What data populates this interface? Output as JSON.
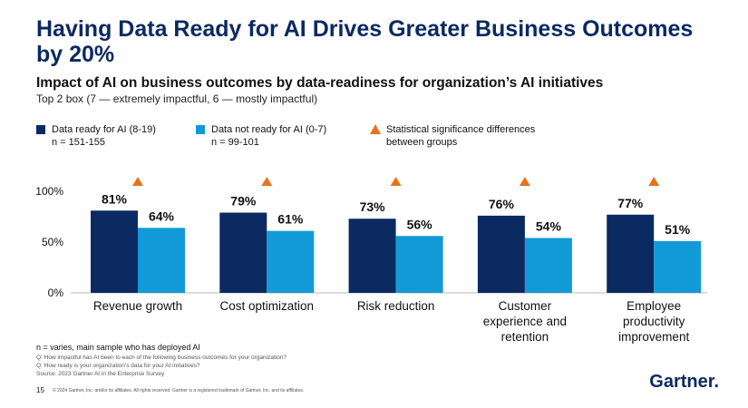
{
  "header": {
    "title": "Having Data Ready for AI Drives Greater Business Outcomes by 20%",
    "subtitle": "Impact of AI on business outcomes by data-readiness for organization’s AI initiatives",
    "note": "Top 2 box (7 — extremely impactful, 6 — mostly impactful)"
  },
  "chart_data": {
    "type": "bar",
    "categories": [
      "Revenue growth",
      "Cost optimization",
      "Risk reduction",
      "Customer experience and retention",
      "Employee productivity improvement"
    ],
    "series": [
      {
        "name": "Data ready for AI (8-19)",
        "sample": "n = 151-155",
        "color": "#0b2a62",
        "values": [
          81,
          79,
          73,
          76,
          77
        ],
        "value_labels": [
          "81%",
          "79%",
          "73%",
          "76%",
          "77%"
        ]
      },
      {
        "name": "Data not ready for AI (0-7)",
        "sample": "n = 99-101",
        "color": "#129ad8",
        "values": [
          64,
          61,
          56,
          54,
          51
        ],
        "value_labels": [
          "64%",
          "61%",
          "56%",
          "54%",
          "51%"
        ]
      }
    ],
    "significance_label": "Statistical significance differences between groups",
    "significance_color": "#e8731f",
    "ylim": [
      0,
      100
    ],
    "yticks": [
      {
        "value": 0,
        "label": "0%"
      },
      {
        "value": 50,
        "label": "50%"
      },
      {
        "value": 100,
        "label": "100%"
      }
    ]
  },
  "footer": {
    "notes": [
      "n = varies, main sample who has deployed AI",
      "Q: How impactful has AI been to each of the following business outcomes for your organization?",
      "Q: How ready is your organization’s data for your AI initiatives?",
      "Source: 2023 Gartner AI in the Enterprise Survey"
    ],
    "page": "15",
    "copyright": "© 2024 Gartner, Inc. and/or its affiliates. All rights reserved. Gartner is a registered trademark of Gartner, Inc. and its affiliates.",
    "logo": "Gartner."
  }
}
